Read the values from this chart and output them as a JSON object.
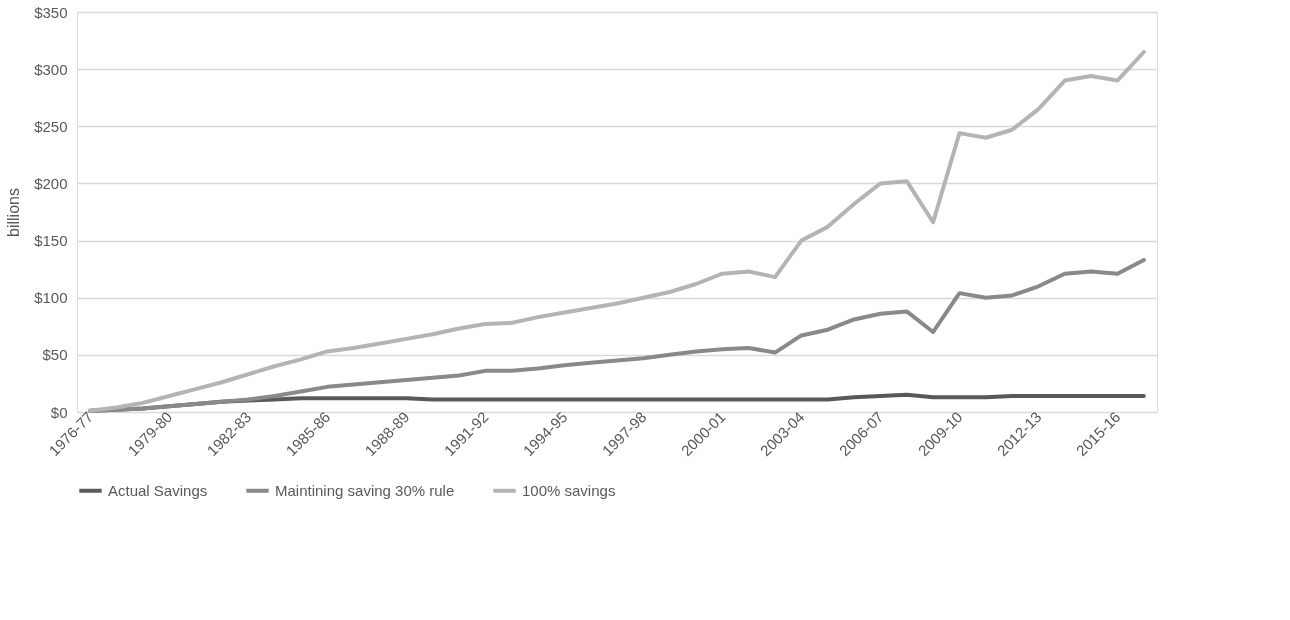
{
  "chart_data": {
    "type": "line",
    "ylabel": "billions",
    "categories": [
      "1976-77",
      null,
      null,
      "1979-80",
      null,
      null,
      "1982-83",
      null,
      null,
      "1985-86",
      null,
      null,
      "1988-89",
      null,
      null,
      "1991-92",
      null,
      null,
      "1994-95",
      null,
      null,
      "1997-98",
      null,
      null,
      "2000-01",
      null,
      null,
      "2003-04",
      null,
      null,
      "2006-07",
      null,
      null,
      "2009-10",
      null,
      null,
      "2012-13",
      null,
      null,
      "2015-16",
      null
    ],
    "series": [
      {
        "name": "Actual Savings",
        "color": "#595959",
        "values": [
          1,
          2,
          3,
          5,
          7,
          9,
          10,
          11,
          12,
          12,
          12,
          12,
          12,
          11,
          11,
          11,
          11,
          11,
          11,
          11,
          11,
          11,
          11,
          11,
          11,
          11,
          11,
          11,
          11,
          13,
          14,
          15,
          13,
          13,
          13,
          14,
          14,
          14,
          14,
          14,
          14
        ]
      },
      {
        "name": "Maintining saving 30% rule",
        "color": "#898989",
        "values": [
          1,
          2,
          3,
          5,
          7,
          9,
          11,
          14,
          18,
          22,
          24,
          26,
          28,
          30,
          32,
          36,
          36,
          38,
          41,
          43,
          45,
          47,
          50,
          53,
          55,
          56,
          52,
          67,
          72,
          81,
          86,
          88,
          70,
          104,
          100,
          102,
          110,
          121,
          123,
          121,
          133
        ]
      },
      {
        "name": "100% savings",
        "color": "#b4b4b4",
        "values": [
          1,
          4,
          8,
          14,
          20,
          26,
          33,
          40,
          46,
          53,
          56,
          60,
          64,
          68,
          73,
          77,
          78,
          83,
          87,
          91,
          95,
          100,
          105,
          112,
          121,
          123,
          118,
          150,
          162,
          182,
          200,
          202,
          166,
          244,
          240,
          247,
          265,
          290,
          294,
          290,
          315
        ]
      }
    ],
    "ylim": [
      0,
      350
    ],
    "yticks": [
      {
        "value": 0,
        "label": "$0"
      },
      {
        "value": 50,
        "label": "$50"
      },
      {
        "value": 100,
        "label": "$100"
      },
      {
        "value": 150,
        "label": "$150"
      },
      {
        "value": 200,
        "label": "$200"
      },
      {
        "value": 250,
        "label": "$250"
      },
      {
        "value": 300,
        "label": "$300"
      },
      {
        "value": 350,
        "label": "$350"
      }
    ],
    "grid": "y",
    "legend": "bottom",
    "marker": "none",
    "line_style": "solid"
  }
}
